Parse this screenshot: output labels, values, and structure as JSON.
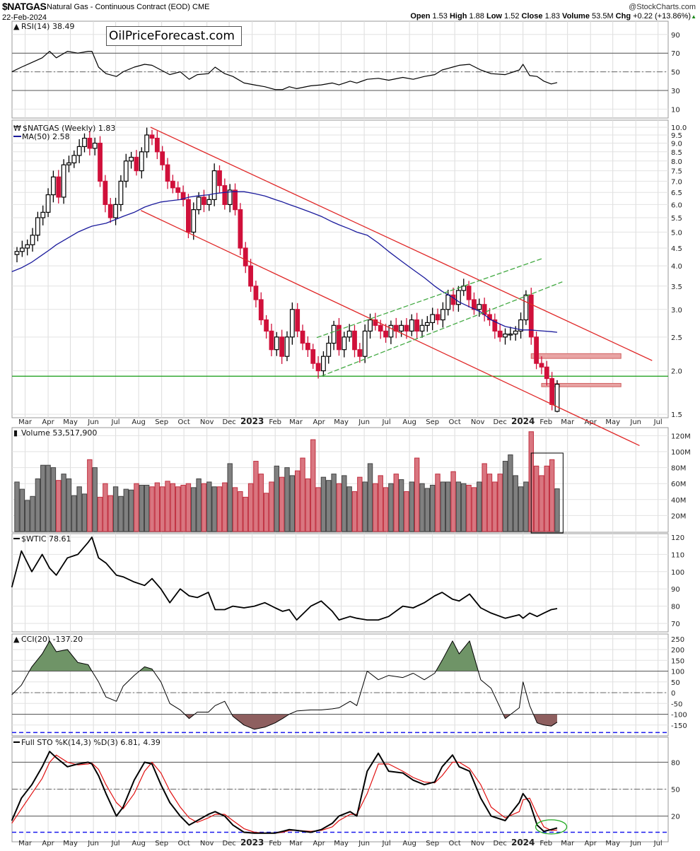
{
  "header": {
    "symbol": "$NATGAS",
    "description": "Natural Gas - Continuous Contract (EOD)",
    "exchange": "CME",
    "date": "22-Feb-2024",
    "watermark": "@StockCharts.com",
    "quote": {
      "open_label": "Open",
      "open": "1.53",
      "high_label": "High",
      "high": "1.88",
      "low_label": "Low",
      "low": "1.52",
      "close_label": "Close",
      "close": "1.83",
      "volume_label": "Volume",
      "volume": "53.5M",
      "chg_label": "Chg",
      "chg": "+0.22 (+13.86%)",
      "trend_icon": "up-triangle-icon"
    }
  },
  "annotation": {
    "site": "OilPriceForecast.com"
  },
  "colors": {
    "down_candle": "#d0103a",
    "up_candle": "#000000",
    "ma50": "#1a1a9c",
    "trendline": "#e02828",
    "channel": "#44aa44",
    "support": "#109a10",
    "zone_fill": "#e8a4a4",
    "volume_up": "#808080",
    "volume_down": "#d97680",
    "cci_pos": "#6f9467",
    "cci_neg": "#8e5f5f",
    "sto_k": "#000000",
    "sto_d": "#e01010",
    "guide": "#1a1aee"
  },
  "x_axis": {
    "months": [
      {
        "date": "2022-03-01",
        "label": "Mar"
      },
      {
        "date": "2022-04-01",
        "label": "Apr"
      },
      {
        "date": "2022-05-01",
        "label": "May"
      },
      {
        "date": "2022-06-01",
        "label": "Jun"
      },
      {
        "date": "2022-07-01",
        "label": "Jul"
      },
      {
        "date": "2022-08-01",
        "label": "Aug"
      },
      {
        "date": "2022-09-01",
        "label": "Sep"
      },
      {
        "date": "2022-10-01",
        "label": "Oct"
      },
      {
        "date": "2022-11-01",
        "label": "Nov"
      },
      {
        "date": "2022-12-01",
        "label": "Dec"
      },
      {
        "date": "2023-01-01",
        "label": "2023",
        "year": true
      },
      {
        "date": "2023-02-01",
        "label": "Feb"
      },
      {
        "date": "2023-03-01",
        "label": "Mar"
      },
      {
        "date": "2023-04-01",
        "label": "Apr"
      },
      {
        "date": "2023-05-01",
        "label": "May"
      },
      {
        "date": "2023-06-01",
        "label": "Jun"
      },
      {
        "date": "2023-07-01",
        "label": "Jul"
      },
      {
        "date": "2023-08-01",
        "label": "Aug"
      },
      {
        "date": "2023-09-01",
        "label": "Sep"
      },
      {
        "date": "2023-10-01",
        "label": "Oct"
      },
      {
        "date": "2023-11-01",
        "label": "Nov"
      },
      {
        "date": "2023-12-01",
        "label": "Dec"
      },
      {
        "date": "2024-01-01",
        "label": "2024",
        "year": true
      },
      {
        "date": "2024-02-01",
        "label": "Feb"
      },
      {
        "date": "2024-03-01",
        "label": "Mar"
      },
      {
        "date": "2024-04-01",
        "label": "Apr"
      },
      {
        "date": "2024-05-01",
        "label": "May"
      },
      {
        "date": "2024-06-01",
        "label": "Jun"
      },
      {
        "date": "2024-07-01",
        "label": "Jul"
      }
    ]
  },
  "indicator_dates": [
    "2022-02-11",
    "2022-02-24",
    "2022-03-10",
    "2022-03-24",
    "2022-04-03",
    "2022-04-12",
    "2022-04-27",
    "2022-05-11",
    "2022-05-25",
    "2022-05-30",
    "2022-06-08",
    "2022-06-18",
    "2022-07-02",
    "2022-07-11",
    "2022-07-26",
    "2022-08-09",
    "2022-08-19",
    "2022-08-31",
    "2022-09-12",
    "2022-09-26",
    "2022-10-08",
    "2022-10-19",
    "2022-11-03",
    "2022-11-12",
    "2022-11-25",
    "2022-12-06",
    "2022-12-21",
    "2023-01-04",
    "2023-01-18",
    "2023-02-01",
    "2023-02-11",
    "2023-02-20",
    "2023-03-02",
    "2023-03-21",
    "2023-04-04",
    "2023-04-19",
    "2023-04-28",
    "2023-05-13",
    "2023-05-22",
    "2023-06-05",
    "2023-06-20",
    "2023-07-04",
    "2023-07-23",
    "2023-08-06",
    "2023-08-21",
    "2023-09-04",
    "2023-09-14",
    "2023-09-28",
    "2023-10-07",
    "2023-10-21",
    "2023-11-05",
    "2023-11-19",
    "2023-12-08",
    "2023-12-27",
    "2024-01-01",
    "2024-01-10",
    "2024-01-20",
    "2024-01-29",
    "2024-02-08",
    "2024-02-16"
  ],
  "chart_data": [
    {
      "id": "rsi",
      "type": "line",
      "label": "RSI(14) 38.49",
      "ticks": [
        90,
        70,
        50,
        30,
        10
      ],
      "levels": [
        70,
        50,
        30
      ],
      "ylim": [
        0,
        100
      ],
      "values": [
        50,
        55,
        60,
        65,
        72,
        65,
        72,
        70,
        72,
        72,
        55,
        48,
        45,
        50,
        55,
        58,
        57,
        52,
        47,
        50,
        42,
        47,
        48,
        55,
        48,
        45,
        38,
        36,
        34,
        31,
        31,
        34,
        32,
        35,
        36,
        38,
        36,
        40,
        38,
        42,
        43,
        41,
        44,
        42,
        45,
        47,
        52,
        55,
        57,
        58,
        52,
        48,
        47,
        52,
        58,
        46,
        45,
        40,
        37,
        38.49
      ]
    },
    {
      "id": "price",
      "type": "candlestick",
      "label": "$NATGAS (Weekly) 1.83",
      "ma_label": "MA(50) 2.58",
      "scale": "log",
      "ylim": [
        1.45,
        10.5
      ],
      "frequency": "weekly",
      "start_date": "2022-02-18",
      "ticks": [
        "10.0",
        "9.5",
        "9.0",
        "8.5",
        "8.0",
        "7.5",
        "7.0",
        "6.5",
        "6.0",
        "5.5",
        "5.0",
        "4.5",
        "4.0",
        "3.5",
        "3.0",
        "2.5",
        "2.0",
        "1.5"
      ],
      "close": [
        4.4,
        4.5,
        4.6,
        4.9,
        5.5,
        5.7,
        6.4,
        7.2,
        6.3,
        7.8,
        7.9,
        8.3,
        8.8,
        9.3,
        8.7,
        9.0,
        7.0,
        6.0,
        5.5,
        6.0,
        7.0,
        8.0,
        8.2,
        7.5,
        8.5,
        9.5,
        9.3,
        8.5,
        7.8,
        7.0,
        6.7,
        6.5,
        6.2,
        5.0,
        5.8,
        6.3,
        6.0,
        6.2,
        7.5,
        6.8,
        6.0,
        6.6,
        5.8,
        4.5,
        4.0,
        3.5,
        3.2,
        2.8,
        2.6,
        2.3,
        2.5,
        2.2,
        2.5,
        3.0,
        2.6,
        2.4,
        2.3,
        2.1,
        2.0,
        2.2,
        2.4,
        2.7,
        2.3,
        2.5,
        2.6,
        2.3,
        2.2,
        2.6,
        2.8,
        2.7,
        2.6,
        2.5,
        2.7,
        2.6,
        2.7,
        2.6,
        2.8,
        2.6,
        2.7,
        2.75,
        2.9,
        2.8,
        3.0,
        3.3,
        3.1,
        3.4,
        3.5,
        3.2,
        3.0,
        3.1,
        2.9,
        2.8,
        2.6,
        2.5,
        2.55,
        2.55,
        2.6,
        2.8,
        3.3,
        2.5,
        2.1,
        2.05,
        1.9,
        1.6,
        1.83
      ],
      "last_bar": {
        "open": 1.53,
        "high": 1.88,
        "low": 1.52,
        "close": 1.83
      },
      "ma50": [
        3.85,
        3.95,
        4.1,
        4.3,
        4.45,
        4.6,
        4.8,
        5.0,
        5.15,
        5.2,
        5.25,
        5.3,
        5.45,
        5.55,
        5.7,
        5.9,
        6.0,
        6.1,
        6.15,
        6.2,
        6.3,
        6.35,
        6.4,
        6.45,
        6.5,
        6.53,
        6.53,
        6.45,
        6.35,
        6.2,
        6.1,
        6.0,
        5.9,
        5.7,
        5.55,
        5.35,
        5.25,
        5.1,
        5.0,
        4.9,
        4.65,
        4.4,
        4.1,
        3.9,
        3.7,
        3.5,
        3.38,
        3.25,
        3.15,
        3.05,
        2.95,
        2.8,
        2.68,
        2.63,
        2.62,
        2.62,
        2.61,
        2.6,
        2.59,
        2.58
      ],
      "trendlines": [
        {
          "name": "upper-red-trendline",
          "color": "trendline",
          "dash": false,
          "from": {
            "date": "2022-08-17",
            "price": 10.0
          },
          "to": {
            "date": "2024-06-23",
            "price": 2.14
          }
        },
        {
          "name": "lower-red-trendline",
          "color": "trendline",
          "dash": false,
          "from": {
            "date": "2022-08-04",
            "price": 5.77
          },
          "to": {
            "date": "2024-06-06",
            "price": 1.22
          }
        },
        {
          "name": "upper-green-channel",
          "color": "channel",
          "dash": true,
          "from": {
            "date": "2023-03-29",
            "price": 2.49
          },
          "to": {
            "date": "2024-01-27",
            "price": 4.2
          }
        },
        {
          "name": "lower-green-channel",
          "color": "channel",
          "dash": true,
          "from": {
            "date": "2023-04-04",
            "price": 1.93
          },
          "to": {
            "date": "2024-02-23",
            "price": 3.6
          }
        }
      ],
      "support_level": 1.93,
      "zones": [
        {
          "from": "2024-01-12",
          "to": "2024-05-12",
          "high": 2.24,
          "low": 2.17
        },
        {
          "from": "2024-01-26",
          "to": "2024-05-12",
          "high": 1.84,
          "low": 1.8
        }
      ]
    },
    {
      "id": "volume",
      "type": "bar",
      "label": "Volume 53,517,900",
      "unit": "M",
      "ticks": [
        {
          "v": 120,
          "t": "120M"
        },
        {
          "v": 100,
          "t": "100M"
        },
        {
          "v": 80,
          "t": "80M"
        },
        {
          "v": 60,
          "t": "60M"
        },
        {
          "v": 40,
          "t": "40M"
        },
        {
          "v": 20,
          "t": "20M"
        }
      ],
      "values": [
        62,
        53,
        39,
        44,
        66,
        83,
        83,
        80,
        64,
        72,
        66,
        45,
        56,
        47,
        90,
        80,
        43,
        60,
        45,
        56,
        44,
        53,
        52,
        60,
        58,
        58,
        56,
        61,
        56,
        63,
        60,
        56,
        58,
        60,
        55,
        66,
        60,
        62,
        56,
        56,
        61,
        85,
        55,
        50,
        43,
        60,
        88,
        72,
        48,
        62,
        82,
        68,
        80,
        70,
        76,
        92,
        66,
        115,
        55,
        68,
        64,
        72,
        60,
        70,
        56,
        50,
        68,
        62,
        85,
        60,
        70,
        55,
        60,
        72,
        65,
        50,
        62,
        92,
        60,
        54,
        58,
        72,
        62,
        62,
        75,
        62,
        60,
        58,
        55,
        62,
        85,
        72,
        62,
        72,
        88,
        96,
        70,
        56,
        62,
        125,
        82,
        70,
        82,
        90,
        53.5
      ],
      "highlight_box": {
        "from": "2024-01-12",
        "to": "2024-02-24"
      }
    },
    {
      "id": "wtic",
      "type": "line",
      "label": "$WTIC 78.61",
      "ticks": [
        120,
        110,
        100,
        90,
        80,
        70
      ],
      "values": [
        91,
        112,
        100,
        110,
        102,
        98,
        108,
        110,
        117,
        120,
        108,
        105,
        98,
        97,
        94,
        92,
        96,
        90,
        82,
        90,
        86,
        85,
        88,
        78,
        78,
        80,
        79,
        80,
        82,
        79,
        77,
        78,
        72,
        80,
        83,
        77,
        72,
        74,
        73,
        72,
        72,
        74,
        80,
        79,
        82,
        86,
        88,
        84,
        83,
        87,
        79,
        76,
        73,
        75,
        73,
        76,
        74,
        76,
        78,
        78.61
      ]
    },
    {
      "id": "cci",
      "type": "area",
      "label": "CCI(20) -137.20",
      "ticks": [
        250,
        200,
        150,
        100,
        50,
        0,
        -50,
        -100,
        -150
      ],
      "levels": [
        100,
        -100
      ],
      "midline": 0,
      "guide_level": -185,
      "values": [
        -10,
        35,
        120,
        180,
        240,
        190,
        200,
        140,
        130,
        100,
        50,
        -20,
        -40,
        30,
        80,
        120,
        110,
        50,
        -50,
        -80,
        -120,
        -90,
        -90,
        -60,
        -40,
        -110,
        -150,
        -170,
        -160,
        -140,
        -120,
        -100,
        -85,
        -80,
        -80,
        -75,
        -70,
        -40,
        -60,
        100,
        60,
        80,
        70,
        90,
        60,
        90,
        150,
        240,
        180,
        240,
        60,
        20,
        -120,
        -70,
        50,
        -60,
        -140,
        -150,
        -155,
        -137.2
      ]
    },
    {
      "id": "sto",
      "type": "line",
      "label_prefix": "Full STO %K(14,3) %D(3) 6.81,",
      "label_d": "4.39",
      "ticks": [
        80,
        50,
        20
      ],
      "levels": [
        80,
        20
      ],
      "midline": 50,
      "guide_level": 2,
      "series": [
        {
          "name": "%K",
          "values": [
            15,
            40,
            55,
            75,
            92,
            85,
            75,
            78,
            80,
            78,
            65,
            45,
            20,
            30,
            60,
            80,
            78,
            55,
            35,
            20,
            10,
            15,
            22,
            25,
            20,
            10,
            2,
            1,
            1,
            1,
            3,
            5,
            4,
            2,
            5,
            12,
            20,
            25,
            20,
            70,
            90,
            70,
            68,
            60,
            55,
            58,
            75,
            88,
            75,
            70,
            40,
            20,
            15,
            35,
            45,
            35,
            10,
            3,
            5,
            6.81
          ]
        },
        {
          "name": "%D",
          "values": [
            12,
            28,
            45,
            62,
            80,
            88,
            80,
            77,
            78,
            79,
            72,
            55,
            35,
            28,
            45,
            70,
            80,
            68,
            48,
            30,
            18,
            13,
            18,
            22,
            22,
            15,
            6,
            2,
            1,
            1,
            2,
            4,
            4,
            3,
            4,
            8,
            15,
            22,
            22,
            45,
            78,
            78,
            70,
            63,
            58,
            57,
            65,
            80,
            80,
            73,
            55,
            30,
            18,
            25,
            38,
            40,
            22,
            8,
            4,
            4.39
          ]
        }
      ],
      "highlight_ellipse": {
        "date": "2024-02-08",
        "value": 8
      }
    }
  ]
}
